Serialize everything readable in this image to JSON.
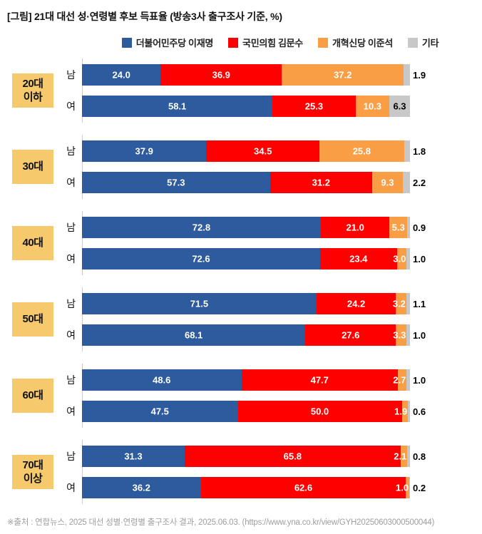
{
  "title": "[그림] 21대 대선 성·연령별 후보 득표율 (방송3사 출구조사 기준, %)",
  "footer": "※출처 : 연합뉴스, 2025 대선 성별·연령별 출구조사 결과, 2025.06.03. (https://www.yna.co.kr/view/GYH20250603000500044)",
  "colors": {
    "lee_jae_myung": "#2E5B9E",
    "kim_moon_soo": "#FF0000",
    "lee_jun_seok": "#FA9E45",
    "others": "#C8C8C8",
    "age_box": "#F7C96D",
    "axis_line": "#C9C9C9"
  },
  "chart_data": {
    "type": "bar",
    "stacked": true,
    "orientation": "horizontal",
    "unit": "%",
    "xlim": [
      0,
      100
    ],
    "title": "[그림] 21대 대선 성·연령별 후보 득표율 (방송3사 출구조사 기준, %)",
    "legend_position": "top",
    "series": [
      "더불어민주당 이재명",
      "국민의힘 김문수",
      "개혁신당 이준석",
      "기타"
    ],
    "series_keys": [
      "lee-jae-myung",
      "kim-moon-soo",
      "lee-jun-seok",
      "others"
    ],
    "series_colors": [
      "#2E5B9E",
      "#FF0000",
      "#FA9E45",
      "#C8C8C8"
    ],
    "groups": [
      {
        "age": "20대\n이하",
        "rows": [
          {
            "gender": "남",
            "values": [
              24.0,
              36.9,
              37.2,
              1.9
            ]
          },
          {
            "gender": "여",
            "values": [
              58.1,
              25.3,
              10.3,
              6.3
            ]
          }
        ]
      },
      {
        "age": "30대",
        "rows": [
          {
            "gender": "남",
            "values": [
              37.9,
              34.5,
              25.8,
              1.8
            ]
          },
          {
            "gender": "여",
            "values": [
              57.3,
              31.2,
              9.3,
              2.2
            ]
          }
        ]
      },
      {
        "age": "40대",
        "rows": [
          {
            "gender": "남",
            "values": [
              72.8,
              21.0,
              5.3,
              0.9
            ]
          },
          {
            "gender": "여",
            "values": [
              72.6,
              23.4,
              3.0,
              1.0
            ]
          }
        ]
      },
      {
        "age": "50대",
        "rows": [
          {
            "gender": "남",
            "values": [
              71.5,
              24.2,
              3.2,
              1.1
            ]
          },
          {
            "gender": "여",
            "values": [
              68.1,
              27.6,
              3.3,
              1.0
            ]
          }
        ]
      },
      {
        "age": "60대",
        "rows": [
          {
            "gender": "남",
            "values": [
              48.6,
              47.7,
              2.7,
              1.0
            ]
          },
          {
            "gender": "여",
            "values": [
              47.5,
              50.0,
              1.9,
              0.6
            ]
          }
        ]
      },
      {
        "age": "70대\n이상",
        "rows": [
          {
            "gender": "남",
            "values": [
              31.3,
              65.8,
              2.1,
              0.8
            ]
          },
          {
            "gender": "여",
            "values": [
              36.2,
              62.6,
              1.0,
              0.2
            ]
          }
        ]
      }
    ]
  }
}
